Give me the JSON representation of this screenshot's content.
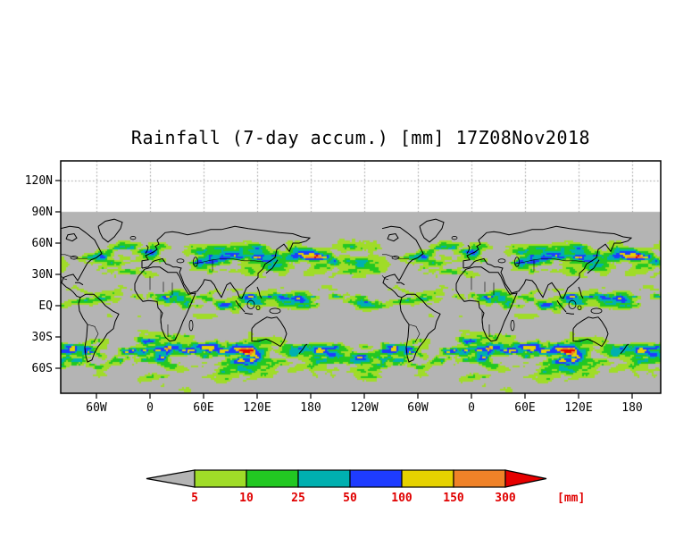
{
  "figure": {
    "title": "Rainfall (7-day accum.) [mm] 17Z08Nov2018"
  },
  "chart_data": {
    "type": "heatmap",
    "title": "Rainfall (7-day accum.) [mm] 17Z08Nov2018",
    "description": "Global 7-day accumulated rainfall map on a lat/lon grid, longitudes wrapped past 360 degrees; gray denotes below lowest contour / no data; data shown from 90N to southern frame edge",
    "x_tick_labels": [
      "60W",
      "0",
      "60E",
      "120E",
      "180",
      "120W",
      "60W",
      "0",
      "60E",
      "120E",
      "180"
    ],
    "x_tick_lons": [
      -60,
      0,
      60,
      120,
      180,
      240,
      300,
      360,
      420,
      480,
      540
    ],
    "y_tick_labels": [
      "120N",
      "90N",
      "60N",
      "30N",
      "EQ",
      "30S",
      "60S"
    ],
    "y_tick_lats": [
      120,
      90,
      60,
      30,
      0,
      -30,
      -60
    ],
    "lon_range": [
      -100,
      572
    ],
    "lat_range": [
      -84,
      139
    ],
    "data_lat_max": 90,
    "grid": "dotted",
    "background_color": "#ffffff",
    "no_data_color": "#b4b4b4",
    "levels_mm": [
      5,
      10,
      25,
      50,
      100,
      150,
      300
    ],
    "palette": {
      "below_first": "#b4b4b4",
      "colors": [
        "#a0dc28",
        "#22c822",
        "#00b0b0",
        "#1e3cff",
        "#e6d200",
        "#f08228"
      ],
      "above_last": "#e60000"
    },
    "colorbar": {
      "tick_labels": [
        "5",
        "10",
        "25",
        "50",
        "100",
        "150",
        "300"
      ],
      "unit_label": "[mm]",
      "label_color": "#e00000",
      "orientation": "horizontal",
      "position": "bottom-center"
    }
  }
}
